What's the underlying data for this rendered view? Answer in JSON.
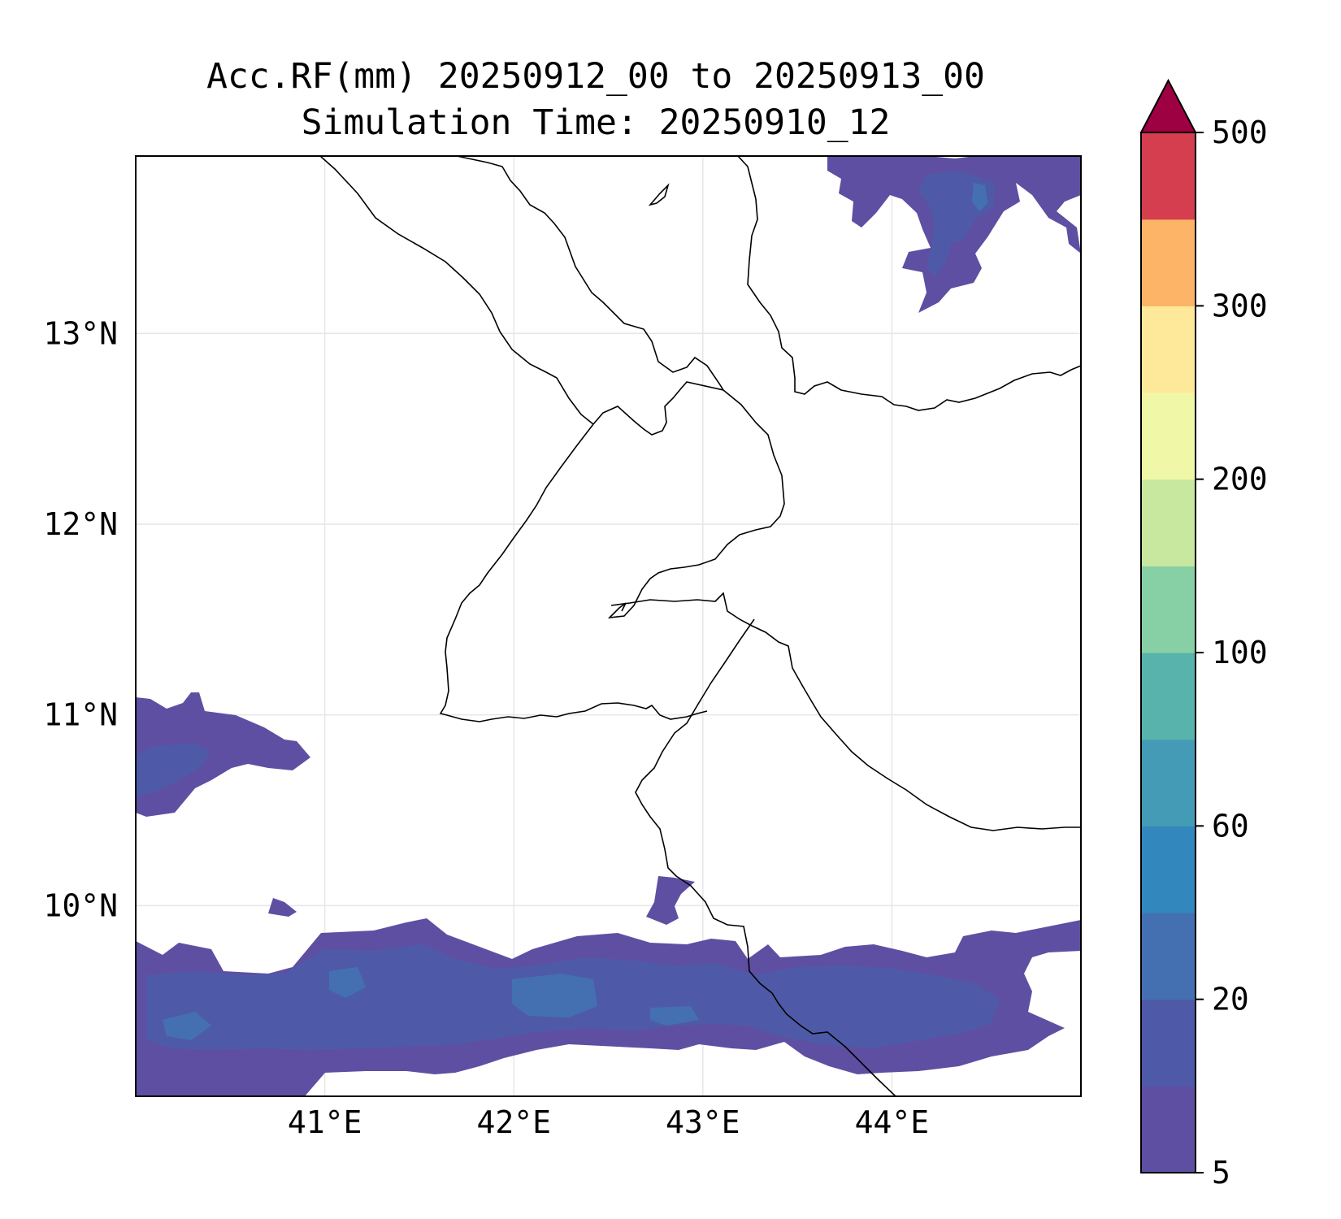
{
  "title": {
    "line1": "Acc.RF(mm) 20250912_00 to 20250913_00",
    "line2": "Simulation Time: 20250910_12"
  },
  "map": {
    "lon_range": [
      40,
      45
    ],
    "lat_range": [
      9,
      13.93
    ],
    "x_ticks": [
      {
        "lon": 41,
        "label": "41°E"
      },
      {
        "lon": 42,
        "label": "42°E"
      },
      {
        "lon": 43,
        "label": "43°E"
      },
      {
        "lon": 44,
        "label": "44°E"
      }
    ],
    "y_ticks": [
      {
        "lat": 10,
        "label": "10°N"
      },
      {
        "lat": 11,
        "label": "11°N"
      },
      {
        "lat": 12,
        "label": "12°N"
      },
      {
        "lat": 13,
        "label": "13°N"
      }
    ],
    "grid": true
  },
  "colorbar": {
    "extend": "max",
    "bin_colors": [
      "#5e4fa2",
      "#4e5aa8",
      "#4470b1",
      "#3288bd",
      "#439bb5",
      "#58b3ac",
      "#87cfa4",
      "#c7e89e",
      "#f0f8a8",
      "#fee99a",
      "#fdb466",
      "#d53e4f"
    ],
    "extend_color": "#9e0142",
    "tick_labels": [
      "5",
      "20",
      "60",
      "100",
      "200",
      "300",
      "500"
    ]
  }
}
